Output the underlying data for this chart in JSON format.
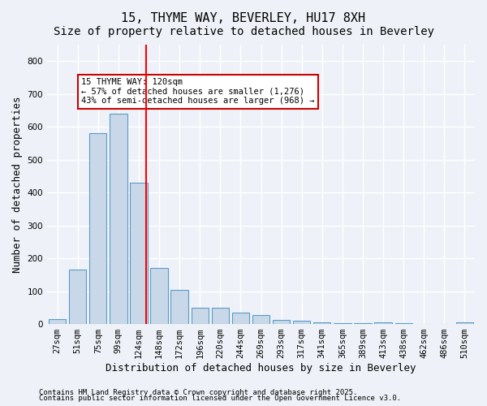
{
  "title_line1": "15, THYME WAY, BEVERLEY, HU17 8XH",
  "title_line2": "Size of property relative to detached houses in Beverley",
  "xlabel": "Distribution of detached houses by size in Beverley",
  "ylabel": "Number of detached properties",
  "categories": [
    "27sqm",
    "51sqm",
    "75sqm",
    "99sqm",
    "124sqm",
    "148sqm",
    "172sqm",
    "196sqm",
    "220sqm",
    "244sqm",
    "269sqm",
    "293sqm",
    "317sqm",
    "341sqm",
    "365sqm",
    "389sqm",
    "413sqm",
    "438sqm",
    "462sqm",
    "486sqm",
    "510sqm"
  ],
  "values": [
    15,
    165,
    580,
    640,
    430,
    170,
    105,
    50,
    50,
    35,
    28,
    12,
    10,
    6,
    2,
    2,
    5,
    2,
    1,
    1,
    5
  ],
  "bar_color": "#c8d8e8",
  "bar_edge_color": "#5a9ac8",
  "red_line_index": 4,
  "red_line_label": "15 THYME WAY: 120sqm",
  "annotation_line1": "15 THYME WAY: 120sqm",
  "annotation_line2": "← 57% of detached houses are smaller (1,276)",
  "annotation_line3": "43% of semi-detached houses are larger (968) →",
  "annotation_box_color": "#ffffff",
  "annotation_box_edge": "#cc0000",
  "ylim": [
    0,
    850
  ],
  "yticks": [
    0,
    100,
    200,
    300,
    400,
    500,
    600,
    700,
    800
  ],
  "footnote_line1": "Contains HM Land Registry data © Crown copyright and database right 2025.",
  "footnote_line2": "Contains public sector information licensed under the Open Government Licence v3.0.",
  "background_color": "#eef2f8",
  "plot_background": "#eef2f8",
  "grid_color": "#ffffff",
  "title_fontsize": 11,
  "subtitle_fontsize": 10,
  "tick_fontsize": 7.5,
  "label_fontsize": 9,
  "footnote_fontsize": 6.5
}
